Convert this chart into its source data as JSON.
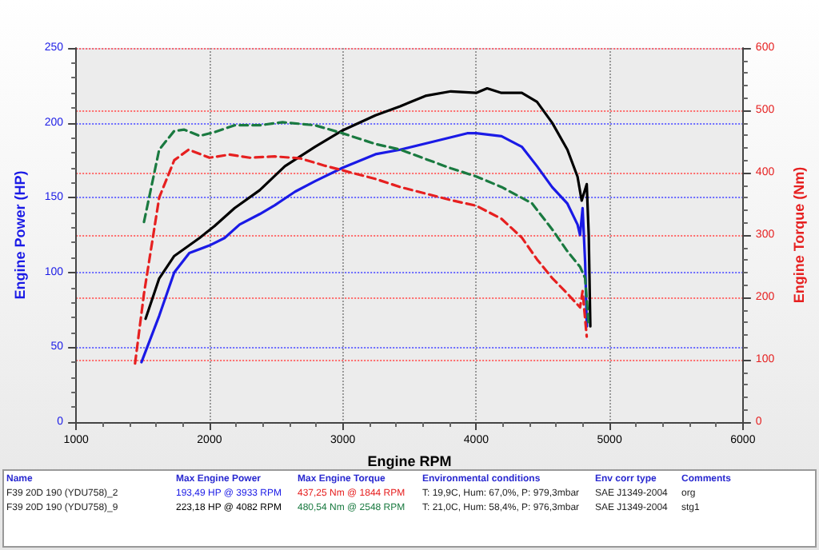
{
  "chart_data": {
    "type": "line",
    "xlabel": "Engine RPM",
    "ylabel": "Engine Power (HP)",
    "y2label": "Engine Torque (Nm)",
    "xlim": [
      1000,
      6000
    ],
    "xticks": [
      1000,
      2000,
      3000,
      4000,
      5000,
      6000
    ],
    "ylim": [
      0,
      250
    ],
    "yticks": [
      0,
      50,
      100,
      150,
      200,
      250
    ],
    "y2lim": [
      0,
      600
    ],
    "y2ticks": [
      0,
      100,
      200,
      300,
      400,
      500,
      600
    ],
    "grid": true,
    "marker": "none",
    "series": [
      {
        "color": "#1a1ae6",
        "axis": "y",
        "line_style": "solid",
        "x": [
          1490,
          1623,
          1736,
          1849,
          2000,
          2113,
          2226,
          2377,
          2491,
          2642,
          2792,
          3000,
          3245,
          3430,
          3658,
          3933,
          4000,
          4190,
          4342,
          4456,
          4570,
          4684,
          4760,
          4779,
          4798,
          4817,
          4830
        ],
        "values": [
          40,
          71,
          100,
          113,
          118,
          123,
          132,
          139,
          145,
          154,
          161,
          170,
          179,
          182,
          187,
          193,
          193,
          191,
          184,
          171,
          157,
          146,
          132,
          125,
          143,
          107,
          64
        ]
      },
      {
        "color": "#000000",
        "axis": "y",
        "line_style": "solid",
        "x": [
          1521,
          1623,
          1736,
          1925,
          2038,
          2189,
          2377,
          2566,
          2792,
          3000,
          3245,
          3430,
          3620,
          3810,
          4000,
          4082,
          4190,
          4342,
          4456,
          4570,
          4684,
          4760,
          4791,
          4829,
          4844,
          4856
        ],
        "values": [
          69,
          96,
          111,
          123,
          131,
          143,
          155,
          171,
          184,
          195,
          205,
          211,
          218,
          221,
          220,
          223,
          220,
          220,
          214,
          200,
          182,
          164,
          148,
          159,
          125,
          64
        ]
      },
      {
        "color": "#e62020",
        "axis": "y2",
        "line_style": "dashed",
        "x": [
          1442,
          1509,
          1623,
          1736,
          1844,
          2000,
          2151,
          2302,
          2491,
          2679,
          2868,
          3245,
          3430,
          3810,
          4000,
          4190,
          4342,
          4456,
          4570,
          4684,
          4779,
          4798,
          4829
        ],
        "values": [
          94,
          206,
          360,
          420,
          437,
          424,
          429,
          424,
          426,
          423,
          411,
          390,
          377,
          356,
          347,
          326,
          296,
          261,
          231,
          206,
          184,
          210,
          137
        ]
      },
      {
        "color": "#1a7a40",
        "axis": "y2",
        "line_style": "dashed",
        "x": [
          1509,
          1623,
          1736,
          1811,
          1925,
          2038,
          2189,
          2377,
          2548,
          2792,
          3000,
          3245,
          3430,
          3810,
          4000,
          4190,
          4418,
          4570,
          4684,
          4779,
          4817,
          4844
        ],
        "values": [
          321,
          437,
          467,
          469,
          459,
          465,
          476,
          476,
          481,
          476,
          463,
          446,
          437,
          407,
          394,
          377,
          351,
          309,
          274,
          249,
          231,
          154
        ]
      }
    ],
    "annotations": [
      "Name",
      "Max Engine Power",
      "Max Engine Torque",
      "Environmental conditions",
      "Env corr type",
      "Comments",
      "F39 20D 190 (YDU758)_2",
      "193,49 HP @ 3933 RPM",
      "437,25 Nm @ 1844 RPM",
      "T: 19,9C, Hum: 67,0%, P: 979,3mbar",
      "SAE J1349-2004",
      "org",
      "F39 20D 190 (YDU758)_9",
      "223,18 HP @ 4082 RPM",
      "480,54 Nm @ 2548 RPM",
      "T: 21,0C, Hum: 58,4%, P: 976,3mbar",
      "SAE J1349-2004",
      "stg1"
    ]
  }
}
